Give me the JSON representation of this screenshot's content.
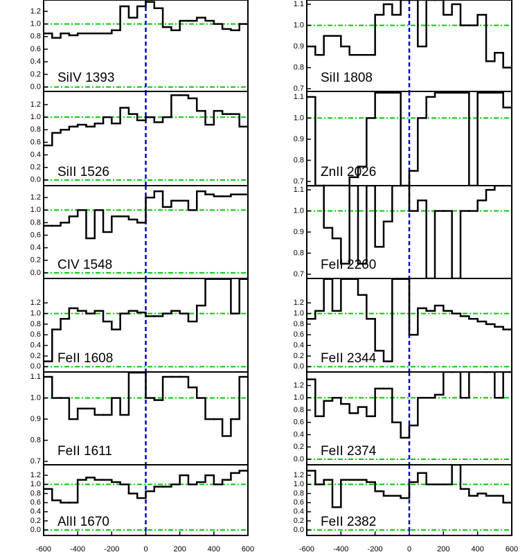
{
  "chart_data": [
    {
      "type": "step",
      "annotation": "SiIV 1393",
      "color": "#000000",
      "x": [
        -575,
        -525,
        -475,
        -425,
        -375,
        -325,
        -275,
        -225,
        -175,
        -125,
        -75,
        -25,
        25,
        75,
        125,
        175,
        225,
        275,
        325,
        375,
        425,
        475,
        525,
        575
      ],
      "values": [
        0.85,
        0.78,
        0.85,
        0.82,
        0.85,
        0.85,
        0.85,
        0.85,
        0.9,
        1.28,
        1.1,
        1.28,
        1.35,
        1.25,
        0.95,
        0.9,
        1.05,
        1.05,
        1.1,
        1.05,
        1.0,
        0.92,
        0.9,
        1.0
      ],
      "xlim": [
        -600,
        600
      ],
      "ylim": [
        -0.07,
        1.38
      ],
      "yticks": [
        {
          "value": 0,
          "label": "0.0"
        },
        0.2,
        0.4,
        0.6,
        0.8,
        {
          "value": 1,
          "label": "1.0"
        },
        1.2
      ],
      "hlines": [
        0,
        1
      ],
      "hline_color": "#00cc00",
      "vlines": [
        0
      ],
      "vline_color": "#0000cc"
    },
    {
      "type": "step",
      "annotation": "SiII 1526",
      "color": "#000000",
      "x": [
        -575,
        -525,
        -475,
        -425,
        -375,
        -325,
        -275,
        -225,
        -175,
        -125,
        -75,
        -25,
        25,
        75,
        125,
        175,
        225,
        275,
        325,
        375,
        425,
        475,
        525,
        575
      ],
      "values": [
        0.55,
        0.75,
        0.8,
        0.85,
        0.88,
        0.85,
        0.9,
        1.0,
        0.9,
        1.15,
        1.05,
        0.95,
        1.0,
        0.92,
        1.0,
        1.35,
        1.35,
        1.3,
        1.1,
        0.88,
        1.1,
        1.05,
        1.05,
        0.85
      ],
      "xlim": [
        -600,
        600
      ],
      "ylim": [
        -0.09,
        1.41
      ],
      "yticks": [
        {
          "value": 0,
          "label": "0.0"
        },
        0.2,
        0.4,
        0.6,
        0.8,
        {
          "value": 1,
          "label": "1.0"
        },
        1.2
      ],
      "hlines": [
        0,
        1
      ],
      "hline_color": "#00cc00",
      "vlines": [
        0
      ],
      "vline_color": "#0000cc"
    },
    {
      "type": "step",
      "annotation": "CIV 1548",
      "color": "#000000",
      "x": [
        -575,
        -525,
        -475,
        -425,
        -375,
        -325,
        -275,
        -225,
        -175,
        -125,
        -75,
        -25,
        25,
        75,
        125,
        175,
        225,
        275,
        325,
        375,
        425,
        475,
        525,
        575
      ],
      "values": [
        0.75,
        0.75,
        0.8,
        0.9,
        1.0,
        0.55,
        1.0,
        0.65,
        0.9,
        0.9,
        0.85,
        0.8,
        1.2,
        1.3,
        1.05,
        1.15,
        1.15,
        1.0,
        1.3,
        1.25,
        1.22,
        1.22,
        1.25,
        1.25
      ],
      "xlim": [
        -600,
        600
      ],
      "ylim": [
        -0.09,
        1.39
      ],
      "yticks": [
        {
          "value": 0,
          "label": "0.0"
        },
        0.2,
        0.4,
        0.6,
        0.8,
        {
          "value": 1,
          "label": "1.0"
        },
        1.2
      ],
      "hlines": [
        0,
        1
      ],
      "hline_color": "#00cc00",
      "vlines": [
        0
      ],
      "vline_color": "#0000cc"
    },
    {
      "type": "step",
      "annotation": "FeII 1608",
      "color": "#000000",
      "x": [
        -575,
        -525,
        -475,
        -425,
        -375,
        -325,
        -275,
        -225,
        -175,
        -125,
        -75,
        -25,
        25,
        75,
        125,
        175,
        225,
        275,
        325,
        375,
        425,
        475,
        525,
        575
      ],
      "values": [
        0.1,
        0.7,
        0.9,
        1.1,
        1.05,
        1.0,
        1.05,
        0.85,
        0.7,
        1.0,
        1.05,
        1.02,
        0.95,
        0.95,
        1.0,
        1.05,
        1.0,
        0.85,
        1.15,
        1.65,
        1.65,
        1.65,
        1.0,
        1.65
      ],
      "xlim": [
        -600,
        600
      ],
      "ylim": [
        -0.1,
        1.66
      ],
      "yticks": [
        {
          "value": 0,
          "label": "0.0"
        },
        0.2,
        0.4,
        0.6,
        0.8,
        {
          "value": 1,
          "label": "1.0"
        },
        1.2
      ],
      "hlines": [
        0,
        1
      ],
      "hline_color": "#00cc00",
      "vlines": [
        0
      ],
      "vline_color": "#0000cc"
    },
    {
      "type": "step",
      "annotation": "FeII 1611",
      "color": "#000000",
      "x": [
        -575,
        -525,
        -475,
        -425,
        -375,
        -325,
        -275,
        -225,
        -175,
        -125,
        -75,
        -25,
        25,
        75,
        125,
        175,
        225,
        275,
        325,
        375,
        425,
        475,
        525,
        575
      ],
      "values": [
        1.1,
        1.0,
        1.0,
        0.9,
        0.95,
        0.95,
        0.92,
        0.92,
        1.0,
        0.92,
        1.12,
        1.12,
        1.0,
        0.99,
        1.1,
        1.1,
        1.1,
        1.05,
        1.0,
        0.9,
        0.9,
        0.82,
        0.9,
        1.1
      ],
      "xlim": [
        -600,
        600
      ],
      "ylim": [
        0.684,
        1.123
      ],
      "yticks": [
        0.7,
        0.8,
        0.9,
        {
          "value": 1,
          "label": "1.0"
        },
        1.1
      ],
      "hlines": [
        1
      ],
      "hline_color": "#00cc00",
      "vlines": [
        0
      ],
      "vline_color": "#0000cc"
    },
    {
      "type": "step",
      "annotation": "AlII 1670",
      "color": "#000000",
      "x": [
        -575,
        -525,
        -475,
        -425,
        -375,
        -325,
        -275,
        -225,
        -175,
        -125,
        -75,
        -25,
        25,
        75,
        125,
        175,
        225,
        275,
        325,
        375,
        425,
        475,
        525,
        575
      ],
      "values": [
        0.9,
        0.65,
        0.6,
        0.6,
        1.1,
        1.15,
        1.1,
        1.1,
        1.05,
        1.0,
        0.8,
        0.7,
        0.85,
        0.95,
        0.95,
        1.0,
        1.2,
        1.0,
        1.05,
        1.2,
        1.0,
        1.1,
        1.25,
        1.3
      ],
      "xlim": [
        -600,
        600
      ],
      "ylim": [
        -0.12,
        1.43
      ],
      "xticks": [
        -600,
        -400,
        -200,
        0,
        200,
        400,
        600
      ],
      "yticks": [
        {
          "value": 0,
          "label": "0.0"
        },
        0.2,
        0.4,
        0.6,
        0.8,
        {
          "value": 1,
          "label": "1.0"
        },
        1.2
      ],
      "hlines": [
        0,
        1
      ],
      "hline_color": "#00cc00",
      "vlines": [
        0
      ],
      "vline_color": "#0000cc"
    },
    {
      "type": "step",
      "annotation": "SiII 1808",
      "color": "#000000",
      "x": [
        -575,
        -525,
        -475,
        -425,
        -375,
        -325,
        -275,
        -225,
        -175,
        -125,
        -75,
        -25,
        25,
        75,
        125,
        175,
        225,
        275,
        325,
        375,
        425,
        475,
        525,
        575
      ],
      "values": [
        0.9,
        0.86,
        0.95,
        0.95,
        0.9,
        0.86,
        0.86,
        0.86,
        1.05,
        1.1,
        1.05,
        1.12,
        1.12,
        0.9,
        1.12,
        1.12,
        1.05,
        1.1,
        1.0,
        1.0,
        1.05,
        0.83,
        0.87,
        0.8
      ],
      "xlim": [
        -600,
        600
      ],
      "ylim": [
        0.687,
        1.12
      ],
      "yticks": [
        0.7,
        0.8,
        0.9,
        {
          "value": 1,
          "label": "1.0"
        },
        1.1
      ],
      "hlines": [
        1
      ],
      "hline_color": "#00cc00",
      "vlines": [
        0
      ],
      "vline_color": "#0000cc"
    },
    {
      "type": "step",
      "annotation": "ZnII 2026",
      "color": "#000000",
      "x": [
        -575,
        -525,
        -475,
        -425,
        -375,
        -325,
        -275,
        -225,
        -175,
        -125,
        -75,
        -25,
        25,
        75,
        125,
        175,
        225,
        275,
        325,
        375,
        425,
        475,
        525,
        575
      ],
      "values": [
        1.1,
        0.68,
        0.68,
        0.68,
        0.68,
        0.72,
        0.77,
        1.0,
        1.12,
        1.12,
        1.12,
        0.68,
        0.75,
        1.0,
        1.1,
        1.12,
        1.12,
        1.12,
        1.12,
        0.68,
        1.12,
        1.12,
        1.12,
        1.05
      ],
      "xlim": [
        -600,
        600
      ],
      "ylim": [
        0.68,
        1.126
      ],
      "yticks": [
        0.7,
        0.8,
        0.9,
        {
          "value": 1,
          "label": "1.0"
        },
        1.1
      ],
      "hlines": [
        1
      ],
      "hline_color": "#00cc00",
      "vlines": [
        0
      ],
      "vline_color": "#0000cc"
    },
    {
      "type": "step",
      "annotation": "FeII 2260",
      "color": "#000000",
      "x": [
        -575,
        -525,
        -475,
        -425,
        -375,
        -325,
        -275,
        -225,
        -175,
        -125,
        -75,
        -25,
        25,
        75,
        125,
        175,
        225,
        275,
        325,
        375,
        425,
        475,
        525,
        575
      ],
      "values": [
        1.12,
        1.12,
        0.92,
        0.87,
        0.75,
        1.12,
        0.75,
        1.12,
        0.83,
        0.95,
        1.12,
        1.12,
        1.0,
        1.05,
        0.68,
        1.0,
        1.0,
        0.68,
        1.0,
        1.0,
        1.05,
        1.1,
        1.12,
        1.12
      ],
      "xlim": [
        -600,
        600
      ],
      "ylim": [
        0.68,
        1.12
      ],
      "yticks": [
        0.7,
        0.8,
        0.9,
        {
          "value": 1,
          "label": "1.0"
        },
        1.1
      ],
      "hlines": [
        1
      ],
      "hline_color": "#00cc00",
      "vlines": [
        0
      ],
      "vline_color": "#0000cc"
    },
    {
      "type": "step",
      "annotation": "FeII 2344",
      "color": "#000000",
      "x": [
        -575,
        -525,
        -475,
        -425,
        -375,
        -325,
        -275,
        -225,
        -175,
        -125,
        -75,
        -25,
        25,
        75,
        125,
        175,
        225,
        275,
        325,
        375,
        425,
        475,
        525,
        575
      ],
      "values": [
        0.9,
        1.05,
        1.65,
        1.05,
        1.65,
        1.65,
        1.35,
        0.9,
        0.3,
        0.1,
        1.65,
        1.65,
        0.6,
        1.1,
        1.05,
        1.15,
        1.05,
        1.0,
        0.95,
        0.9,
        0.85,
        0.8,
        0.75,
        0.7
      ],
      "xlim": [
        -600,
        600
      ],
      "ylim": [
        -0.1,
        1.66
      ],
      "yticks": [
        {
          "value": 0,
          "label": "0.0"
        },
        0.2,
        0.4,
        0.6,
        0.8,
        {
          "value": 1,
          "label": "1.0"
        },
        1.2
      ],
      "hlines": [
        0,
        1
      ],
      "hline_color": "#00cc00",
      "vlines": [
        0
      ],
      "vline_color": "#0000cc"
    },
    {
      "type": "step",
      "annotation": "FeII 2374",
      "color": "#000000",
      "x": [
        -575,
        -525,
        -475,
        -425,
        -375,
        -325,
        -275,
        -225,
        -175,
        -125,
        -75,
        -25,
        25,
        75,
        125,
        175,
        225,
        275,
        325,
        375,
        425,
        475,
        525,
        575
      ],
      "values": [
        1.3,
        0.7,
        0.95,
        1.0,
        0.9,
        0.75,
        0.85,
        0.7,
        1.15,
        1.15,
        0.6,
        0.35,
        0.55,
        1.0,
        1.0,
        1.05,
        1.42,
        1.42,
        1.0,
        1.42,
        1.42,
        1.42,
        1.0,
        1.42
      ],
      "xlim": [
        -600,
        600
      ],
      "ylim": [
        -0.09,
        1.42
      ],
      "yticks": [
        {
          "value": 0,
          "label": "0.0"
        },
        0.2,
        0.4,
        0.6,
        0.8,
        {
          "value": 1,
          "label": "1.0"
        },
        1.2
      ],
      "hlines": [
        0,
        1
      ],
      "hline_color": "#00cc00",
      "vlines": [
        0
      ],
      "vline_color": "#0000cc"
    },
    {
      "type": "step",
      "annotation": "FeII 2382",
      "color": "#000000",
      "x": [
        -575,
        -525,
        -475,
        -425,
        -375,
        -325,
        -275,
        -225,
        -175,
        -125,
        -75,
        -25,
        25,
        75,
        125,
        175,
        225,
        275,
        325,
        375,
        425,
        475,
        525,
        575
      ],
      "values": [
        1.3,
        1.0,
        1.1,
        0.5,
        1.1,
        1.1,
        1.1,
        1.05,
        0.85,
        0.75,
        0.75,
        0.7,
        1.05,
        1.25,
        1.0,
        1.0,
        1.0,
        1.43,
        0.9,
        0.75,
        0.8,
        0.75,
        0.75,
        0.6
      ],
      "xlim": [
        -600,
        600
      ],
      "ylim": [
        -0.12,
        1.43
      ],
      "xticks": [
        -600,
        -400,
        -200,
        0,
        200,
        400,
        {
          "value": 600,
          "label": "600"
        }
      ],
      "yticks": [
        {
          "value": 0,
          "label": "0.0"
        },
        0.2,
        0.4,
        0.6,
        0.8,
        {
          "value": 1,
          "label": "1.0"
        },
        1.2
      ],
      "hlines": [
        0,
        1
      ],
      "hline_color": "#00cc00",
      "vlines": [
        0
      ],
      "vline_color": "#0000cc"
    }
  ]
}
